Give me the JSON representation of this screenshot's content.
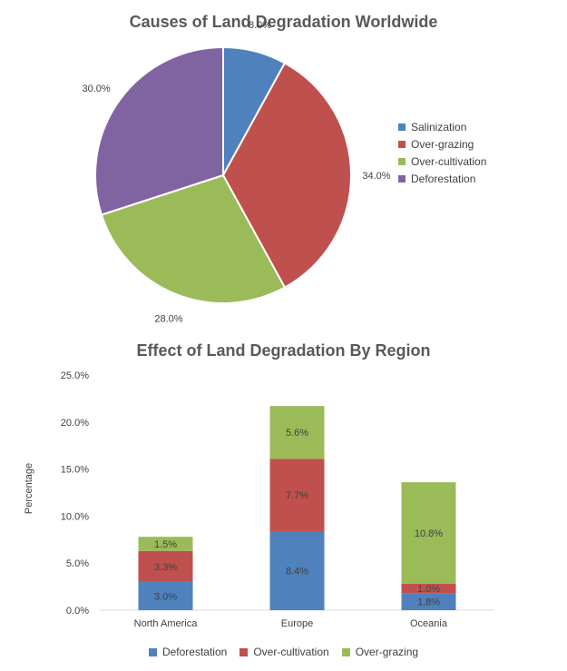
{
  "chart_data": [
    {
      "type": "pie",
      "title": "Causes of Land Degradation Worldwide",
      "categories": [
        "Salinization",
        "Over-grazing",
        "Over-cultivation",
        "Deforestation"
      ],
      "values": [
        8.0,
        34.0,
        28.0,
        30.0
      ],
      "labels": [
        "8.0%",
        "34.0%",
        "28.0%",
        "30.0%"
      ],
      "colors": [
        "#4f81bd",
        "#c0504d",
        "#9bbb59",
        "#8064a2"
      ],
      "legend_position": "right"
    },
    {
      "type": "bar",
      "stacked": true,
      "title": "Effect of Land Degradation By Region",
      "xlabel": "",
      "ylabel": "Percentage",
      "categories": [
        "North America",
        "Europe",
        "Oceania"
      ],
      "series": [
        {
          "name": "Deforestation",
          "values": [
            3.0,
            8.4,
            1.8
          ],
          "labels": [
            "3.0%",
            "8.4%",
            "1.8%"
          ],
          "color": "#4f81bd"
        },
        {
          "name": "Over-cultivation",
          "values": [
            3.3,
            7.7,
            1.0
          ],
          "labels": [
            "3.3%",
            "7.7%",
            "1.0%"
          ],
          "color": "#c0504d"
        },
        {
          "name": "Over-grazing",
          "values": [
            1.5,
            5.6,
            10.8
          ],
          "labels": [
            "1.5%",
            "5.6%",
            "10.8%"
          ],
          "color": "#9bbb59"
        }
      ],
      "ylim": [
        0,
        25
      ],
      "yticks": [
        "0.0%",
        "5.0%",
        "10.0%",
        "15.0%",
        "20.0%",
        "25.0%"
      ],
      "grid": false,
      "legend_position": "bottom"
    }
  ]
}
